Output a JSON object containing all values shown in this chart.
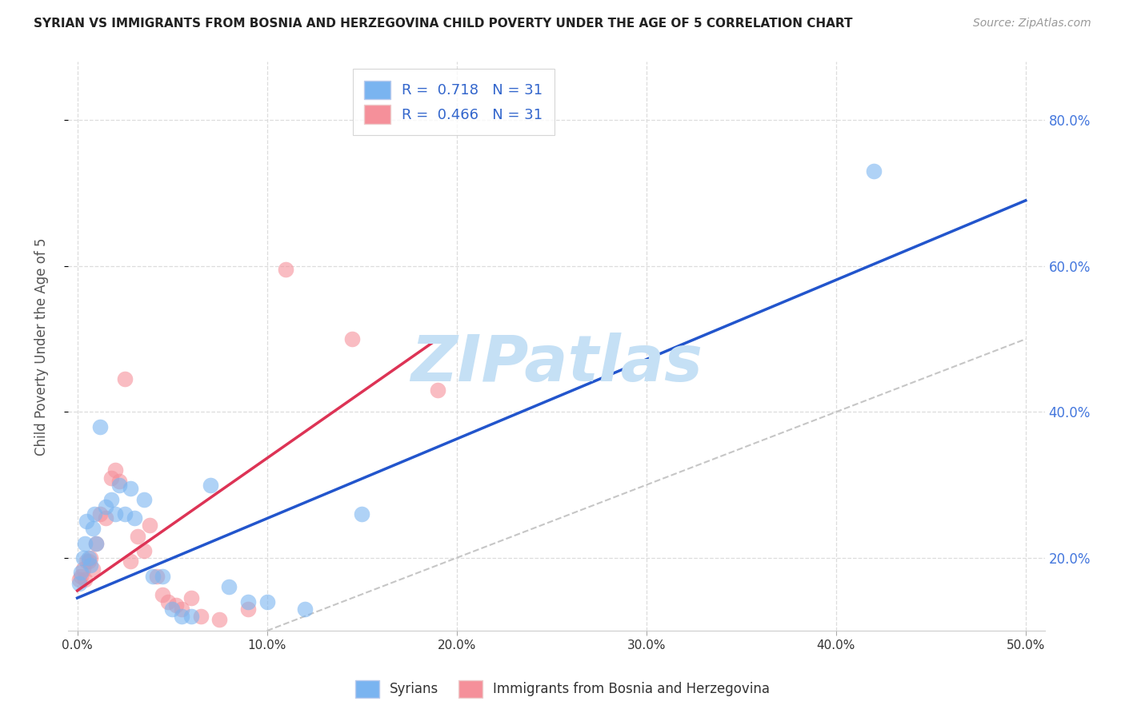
{
  "title": "SYRIAN VS IMMIGRANTS FROM BOSNIA AND HERZEGOVINA CHILD POVERTY UNDER THE AGE OF 5 CORRELATION CHART",
  "source": "Source: ZipAtlas.com",
  "ylabel": "Child Poverty Under the Age of 5",
  "xlim": [
    -0.5,
    51.0
  ],
  "ylim": [
    10.0,
    88.0
  ],
  "xticks": [
    0.0,
    10.0,
    20.0,
    30.0,
    40.0,
    50.0
  ],
  "yticks": [
    20.0,
    40.0,
    60.0,
    80.0
  ],
  "ytick_labels_right": [
    "20.0%",
    "40.0%",
    "60.0%",
    "80.0%"
  ],
  "xtick_labels": [
    "0.0%",
    "10.0%",
    "20.0%",
    "30.0%",
    "40.0%",
    "50.0%"
  ],
  "R_syrians": "0.718",
  "N_syrians": "31",
  "R_bosnia": "0.466",
  "N_bosnia": "31",
  "color_syrians": "#7ab4f0",
  "color_bosnia": "#f5909a",
  "color_trend_syrians": "#2255cc",
  "color_trend_bosnia": "#dd3355",
  "watermark": "ZIPatlas",
  "watermark_color": "#c5e0f5",
  "syrians_x": [
    0.1,
    0.2,
    0.3,
    0.4,
    0.5,
    0.6,
    0.7,
    0.8,
    0.9,
    1.0,
    1.2,
    1.5,
    1.8,
    2.0,
    2.2,
    2.5,
    2.8,
    3.0,
    3.5,
    4.0,
    4.5,
    5.0,
    5.5,
    6.0,
    7.0,
    8.0,
    9.0,
    10.0,
    12.0,
    15.0,
    42.0
  ],
  "syrians_y": [
    16.5,
    18.0,
    20.0,
    22.0,
    25.0,
    20.0,
    19.0,
    24.0,
    26.0,
    22.0,
    38.0,
    27.0,
    28.0,
    26.0,
    30.0,
    26.0,
    29.5,
    25.5,
    28.0,
    17.5,
    17.5,
    13.0,
    12.0,
    12.0,
    30.0,
    16.0,
    14.0,
    14.0,
    13.0,
    26.0,
    73.0
  ],
  "bosnia_x": [
    0.1,
    0.2,
    0.3,
    0.4,
    0.5,
    0.6,
    0.7,
    0.8,
    1.0,
    1.2,
    1.5,
    1.8,
    2.0,
    2.2,
    2.5,
    2.8,
    3.2,
    3.5,
    3.8,
    4.2,
    4.5,
    4.8,
    5.2,
    5.5,
    6.0,
    6.5,
    7.5,
    9.0,
    11.0,
    14.5,
    19.0
  ],
  "bosnia_y": [
    17.0,
    17.5,
    18.5,
    17.0,
    19.5,
    19.5,
    20.0,
    18.5,
    22.0,
    26.0,
    25.5,
    31.0,
    32.0,
    30.5,
    44.5,
    19.5,
    23.0,
    21.0,
    24.5,
    17.5,
    15.0,
    14.0,
    13.5,
    13.0,
    14.5,
    12.0,
    11.5,
    13.0,
    59.5,
    50.0,
    43.0
  ],
  "trend_blue_x0": 0.0,
  "trend_blue_y0": 14.5,
  "trend_blue_x1": 50.0,
  "trend_blue_y1": 69.0,
  "trend_pink_x0": 0.0,
  "trend_pink_y0": 15.5,
  "trend_pink_x1": 19.0,
  "trend_pink_y1": 50.0
}
